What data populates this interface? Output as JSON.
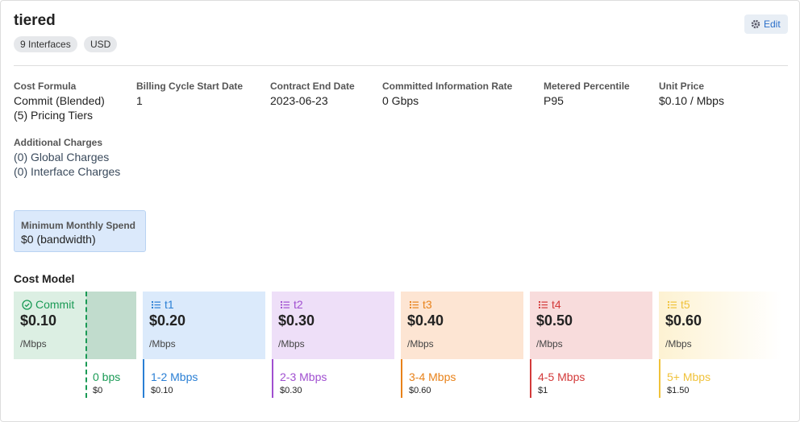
{
  "header": {
    "title": "tiered",
    "badges": [
      "9 Interfaces",
      "USD"
    ],
    "edit_button": "Edit"
  },
  "fields": [
    {
      "label": "Cost Formula",
      "values": [
        "Commit (Blended)",
        "(5) Pricing Tiers"
      ]
    },
    {
      "label": "Billing Cycle Start Date",
      "values": [
        "1"
      ]
    },
    {
      "label": "Contract End Date",
      "values": [
        "2023-06-23"
      ]
    },
    {
      "label": "Committed Information Rate",
      "values": [
        "0 Gbps"
      ]
    },
    {
      "label": "Metered Percentile",
      "values": [
        "P95"
      ]
    },
    {
      "label": "Unit Price",
      "values": [
        "$0.10 / Mbps"
      ]
    }
  ],
  "additional_charges": {
    "label": "Additional Charges",
    "values": [
      "(0) Global Charges",
      "(0) Interface Charges"
    ]
  },
  "minimum_spend": {
    "label": "Minimum Monthly Spend",
    "value": "$0 (bandwidth)"
  },
  "cost_model": {
    "title": "Cost Model",
    "tiers": [
      {
        "name": "Commit",
        "price": "$0.10",
        "unit": "/Mbps",
        "range": "0 bps",
        "range_price": "$0"
      },
      {
        "name": "t1",
        "price": "$0.20",
        "unit": "/Mbps",
        "range": "1-2 Mbps",
        "range_price": "$0.10"
      },
      {
        "name": "t2",
        "price": "$0.30",
        "unit": "/Mbps",
        "range": "2-3 Mbps",
        "range_price": "$0.30"
      },
      {
        "name": "t3",
        "price": "$0.40",
        "unit": "/Mbps",
        "range": "3-4 Mbps",
        "range_price": "$0.60"
      },
      {
        "name": "t4",
        "price": "$0.50",
        "unit": "/Mbps",
        "range": "4-5 Mbps",
        "range_price": "$1"
      },
      {
        "name": "t5",
        "price": "$0.60",
        "unit": "/Mbps",
        "range": "5+ Mbps",
        "range_price": "$1.50"
      }
    ]
  }
}
